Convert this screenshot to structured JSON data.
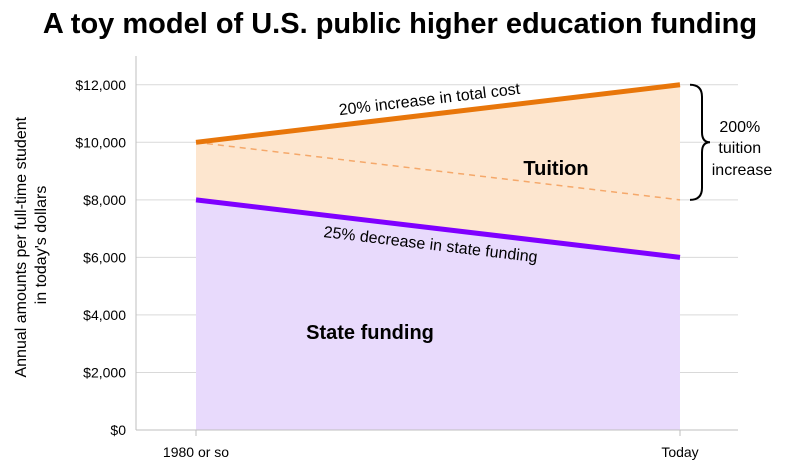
{
  "chart_data": {
    "type": "area",
    "title": "A toy model of U.S. public higher education funding",
    "xlabel": "",
    "ylabel_lines": [
      "Annual amounts per full-time student",
      "in today's dollars"
    ],
    "categories": [
      "1980 or so",
      "Today"
    ],
    "ylim": [
      0,
      13000
    ],
    "yticks": [
      {
        "value": 0,
        "label": "$0"
      },
      {
        "value": 2000,
        "label": "$2,000"
      },
      {
        "value": 4000,
        "label": "$4,000"
      },
      {
        "value": 6000,
        "label": "$6,000"
      },
      {
        "value": 8000,
        "label": "$8,000"
      },
      {
        "value": 10000,
        "label": "$10,000"
      },
      {
        "value": 12000,
        "label": "$12,000"
      }
    ],
    "grid": true,
    "series": [
      {
        "name": "State funding",
        "values": [
          8000,
          6000
        ],
        "line_color": "#7f00ff",
        "fill_color": "#e8dafc"
      },
      {
        "name": "Tuition",
        "values": [
          2000,
          6000
        ],
        "fill_color": "#fde6cf"
      }
    ],
    "total_cost": {
      "values": [
        10000,
        12000
      ],
      "color": "#e8760a"
    },
    "inflation_only_reference": {
      "values": [
        10000,
        8000
      ],
      "color": "#f5a86a",
      "style": "dashed"
    },
    "annotations": {
      "total_cost_label": "20% increase in total cost",
      "state_label": "25% decrease in state funding",
      "tuition_increase_lines": [
        "200%",
        "tuition",
        "increase"
      ]
    },
    "region_labels": {
      "tuition": "Tuition",
      "state": "State funding"
    }
  }
}
